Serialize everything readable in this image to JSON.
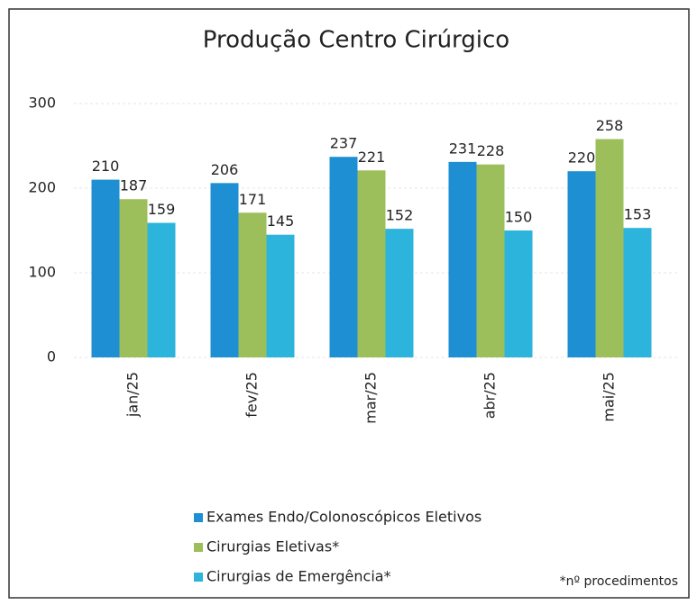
{
  "chart_data": {
    "type": "bar",
    "title": "Produção Centro Cirúrgico",
    "categories": [
      "jan/25",
      "fev/25",
      "mar/25",
      "abr/25",
      "mai/25"
    ],
    "series": [
      {
        "name": "Exames Endo/Colonoscópicos Eletivos",
        "color": "#1e8fd2",
        "values": [
          210,
          206,
          237,
          231,
          220
        ]
      },
      {
        "name": "Cirurgias Eletivas*",
        "color": "#9cbf5c",
        "values": [
          187,
          171,
          221,
          228,
          258
        ]
      },
      {
        "name": "Cirurgias de Emergência*",
        "color": "#2cb4dc",
        "values": [
          159,
          145,
          152,
          150,
          153
        ]
      }
    ],
    "ylim": [
      0,
      300
    ],
    "yticks": [
      0,
      100,
      200,
      300
    ],
    "grid": true,
    "note": "*nº procedimentos"
  }
}
